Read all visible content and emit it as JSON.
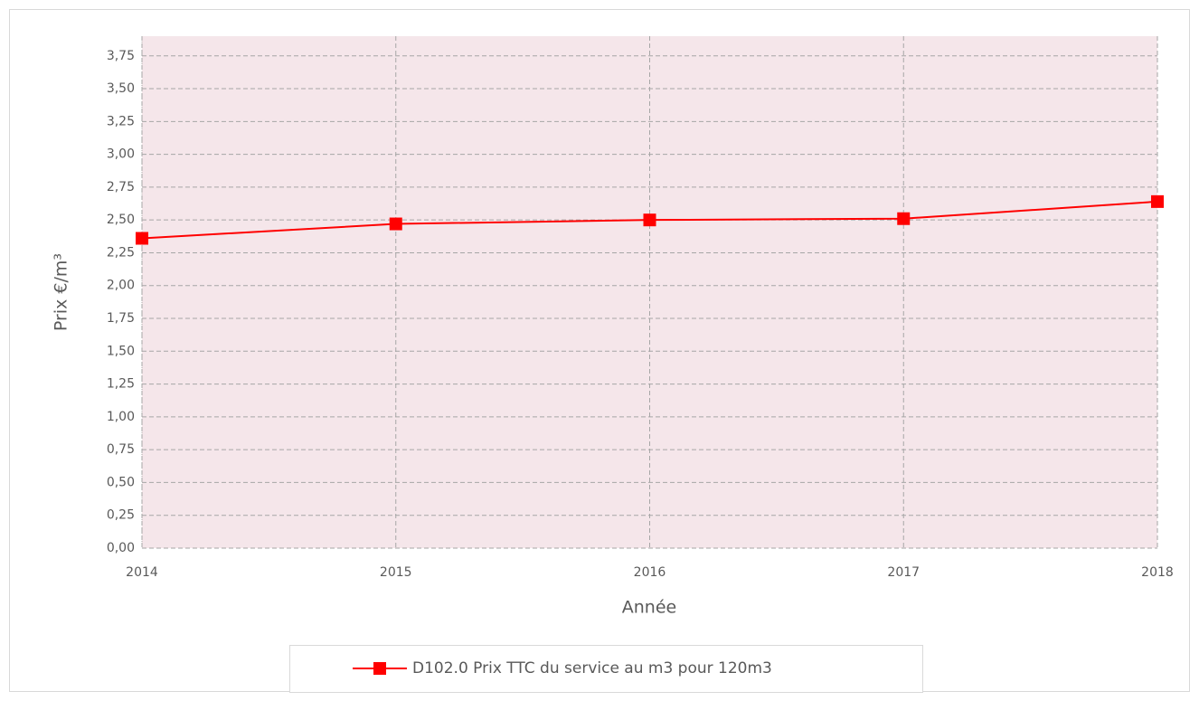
{
  "chart_data": {
    "type": "line",
    "x_label": "Année",
    "y_label": "Prix €/m³",
    "x": [
      2014,
      2015,
      2016,
      2017,
      2018
    ],
    "series": [
      {
        "name": "D102.0 Prix TTC du service au m3 pour 120m3",
        "color": "#ff0000",
        "values": [
          2.36,
          2.47,
          2.5,
          2.51,
          2.64
        ]
      }
    ],
    "xlim": [
      2014,
      2018
    ],
    "xticks": [
      2014,
      2015,
      2016,
      2017,
      2018
    ],
    "ylim": [
      0,
      3.9
    ],
    "yticks": [
      {
        "value": 0,
        "label": "0,00"
      },
      {
        "value": 0.25,
        "label": "0,25"
      },
      {
        "value": 0.5,
        "label": "0,50"
      },
      {
        "value": 0.75,
        "label": "0,75"
      },
      {
        "value": 1,
        "label": "1,00"
      },
      {
        "value": 1.25,
        "label": "1,25"
      },
      {
        "value": 1.5,
        "label": "1,50"
      },
      {
        "value": 1.75,
        "label": "1,75"
      },
      {
        "value": 2,
        "label": "2,00"
      },
      {
        "value": 2.25,
        "label": "2,25"
      },
      {
        "value": 2.5,
        "label": "2,50"
      },
      {
        "value": 2.75,
        "label": "2,75"
      },
      {
        "value": 3,
        "label": "3,00"
      },
      {
        "value": 3.25,
        "label": "3,25"
      },
      {
        "value": 3.5,
        "label": "3,50"
      },
      {
        "value": 3.75,
        "label": "3,75"
      }
    ],
    "grid": true
  }
}
